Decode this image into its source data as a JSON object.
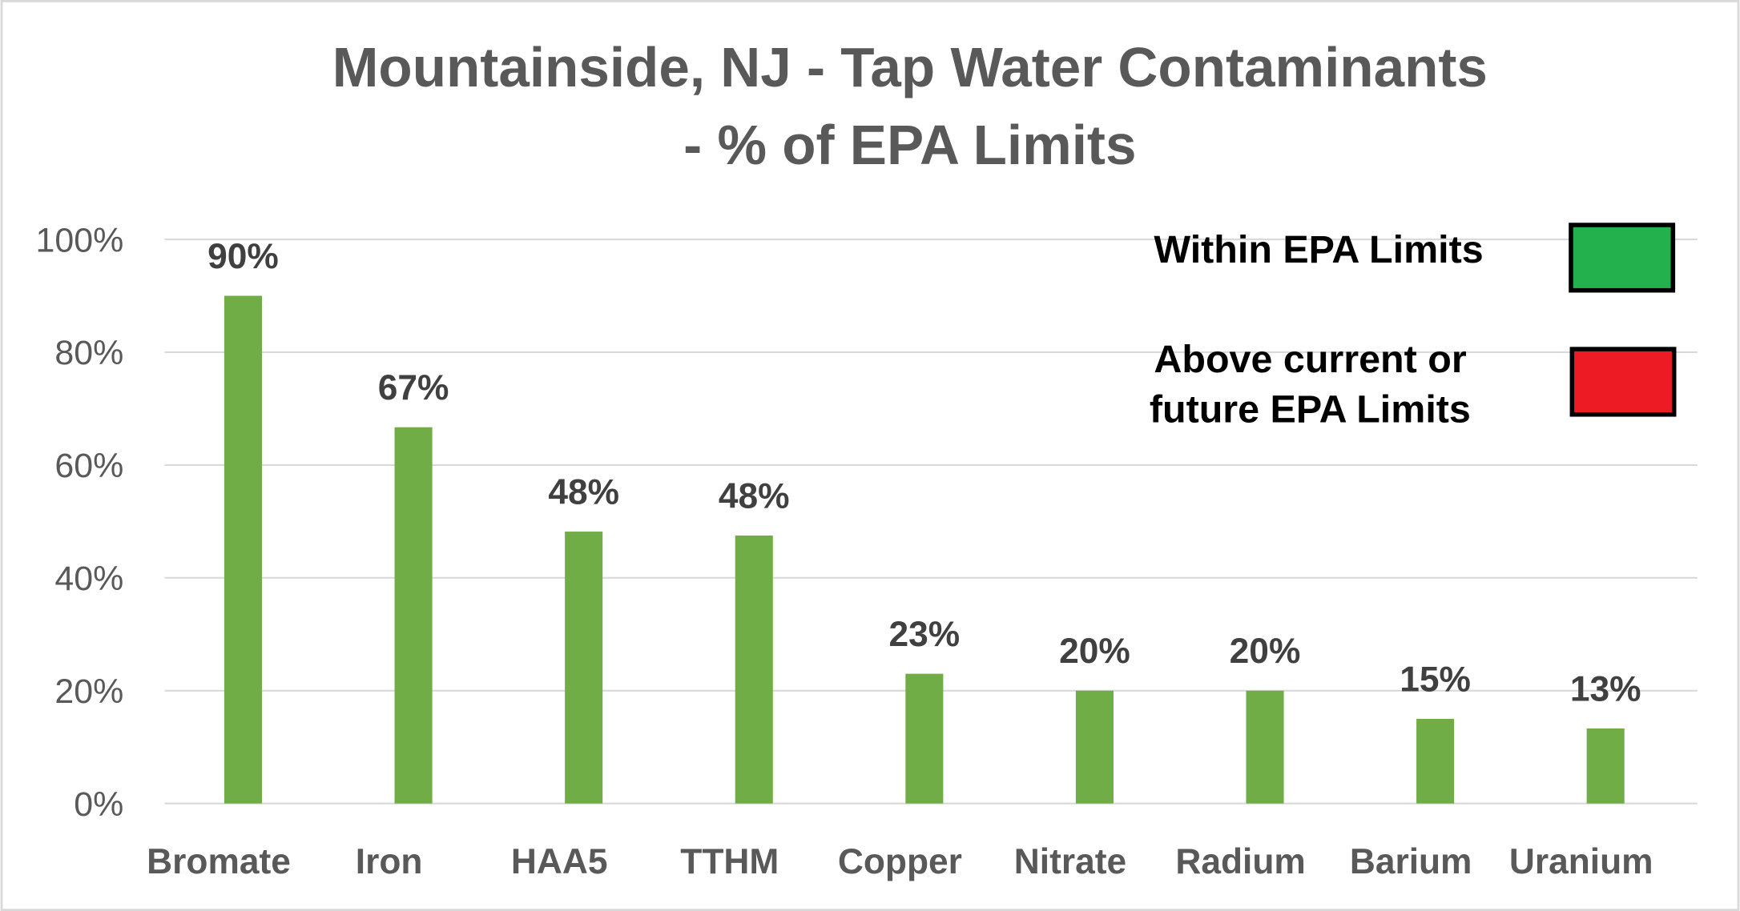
{
  "chart_data": {
    "type": "bar",
    "title": [
      "Mountainside, NJ - Tap Water Contaminants",
      "- % of EPA  Limits"
    ],
    "xlabel": "",
    "ylabel": "",
    "categories": [
      "Bromate",
      "Iron",
      "HAA5",
      "TTHM",
      "Copper",
      "Nitrate",
      "Radium",
      "Barium",
      "Uranium"
    ],
    "values": [
      90,
      66.7,
      48.2,
      47.5,
      23,
      20,
      20,
      15,
      13.3
    ],
    "data_labels": [
      "90%",
      "67%",
      "48%",
      "48%",
      "23%",
      "20%",
      "20%",
      "15%",
      "13%"
    ],
    "ylim": [
      0,
      100
    ],
    "yticks": [
      0,
      20,
      40,
      60,
      80,
      100
    ],
    "ytick_labels": [
      "0%",
      "20%",
      "40%",
      "60%",
      "80%",
      "100%"
    ],
    "grid": "horizontal",
    "bar_color": "#70ad47",
    "legend": {
      "placement": "top-right",
      "entries": [
        {
          "label": "Within  EPA Limits",
          "color": "#22b14c"
        },
        {
          "label": [
            "Above current or",
            "future EPA Limits"
          ],
          "color": "#ed1c24"
        }
      ]
    }
  }
}
